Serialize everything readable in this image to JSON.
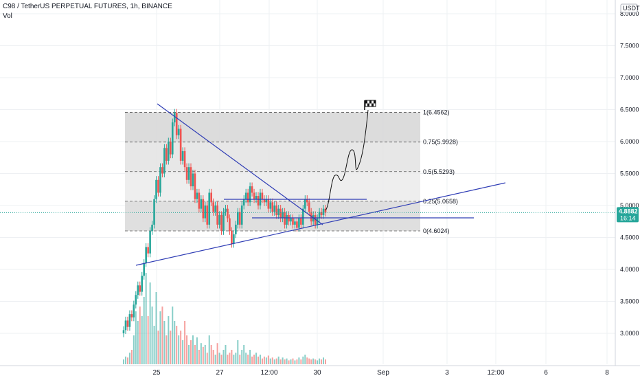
{
  "header": {
    "symbol_line": "C98 / TetherUS PERPETUAL FUTURES, 1h, BINANCE",
    "volume_label": "Vol"
  },
  "price_axis": {
    "unit_badge": "USDT",
    "ticks": [
      "8.0000",
      "7.5000",
      "7.0000",
      "6.5000",
      "6.0000",
      "5.5000",
      "5.0000",
      "4.5000",
      "4.0000",
      "3.5000",
      "3.0000"
    ]
  },
  "last_price": {
    "value": "4.8882",
    "countdown": "16:14",
    "color": "#26a69a"
  },
  "time_axis": {
    "ticks": [
      "25",
      "27",
      "12:00",
      "30",
      "Sep",
      "3",
      "12:00",
      "6",
      "8"
    ]
  },
  "colors": {
    "up": "#26a69a",
    "down": "#ef5350",
    "lines": "#2f3db5",
    "fib_band": "#d9d9d9"
  },
  "chart_data": {
    "type": "candlestick",
    "price_scale": {
      "min": 2.6,
      "max": 8.1
    },
    "fibonacci": [
      {
        "label": "1(6.4562)",
        "price": 6.4562
      },
      {
        "label": "0.75(5.9928)",
        "price": 5.9928
      },
      {
        "label": "0.5(5.5293)",
        "price": 5.5293
      },
      {
        "label": "0.25(5.0658)",
        "price": 5.0658
      },
      {
        "label": "0(4.6024)",
        "price": 4.6024
      }
    ],
    "price_path": [
      [
        3.05,
        3.2,
        3.1,
        3.3,
        3.25,
        3.45,
        3.6,
        3.75,
        3.65,
        3.9,
        4.1,
        4.35,
        4.25,
        4.6,
        4.7,
        5.1,
        5.4,
        5.2,
        5.6,
        5.5,
        5.9,
        5.7,
        6.0,
        5.8,
        6.3,
        6.45,
        6.1,
        6.2,
        5.7,
        5.85,
        5.6,
        5.4,
        5.6,
        5.3,
        5.5,
        5.1,
        5.2,
        4.95,
        5.1,
        4.8,
        5.0,
        4.7,
        5.2,
        5.05,
        4.9,
        5.0,
        4.7,
        4.85,
        4.6,
        4.9,
        4.95,
        4.8,
        4.6,
        4.4,
        4.55,
        4.7,
        4.9,
        4.7,
        5.0,
        5.1,
        5.2,
        5.05,
        5.3,
        5.2,
        5.1,
        5.15,
        5.0,
        5.2,
        5.1,
        5.05,
        5.1,
        4.95,
        5.05,
        4.9,
        5.0,
        4.85,
        4.95,
        4.8,
        4.9,
        4.7,
        4.85,
        4.75,
        4.8,
        4.7,
        4.75,
        4.65,
        4.8,
        4.7,
        4.95,
        5.1,
        5.05,
        4.9,
        4.75,
        4.85,
        4.7,
        4.8,
        4.9,
        4.85,
        4.95,
        4.8882
      ]
    ],
    "volume": [
      0.05,
      0.08,
      0.07,
      0.12,
      0.15,
      0.3,
      0.55,
      0.45,
      0.6,
      0.5,
      0.7,
      0.95,
      0.5,
      0.85,
      0.6,
      0.4,
      0.75,
      0.35,
      0.55,
      0.6,
      0.45,
      0.3,
      0.5,
      0.35,
      0.6,
      0.45,
      0.4,
      0.3,
      0.35,
      0.25,
      0.45,
      0.3,
      0.2,
      0.25,
      0.3,
      0.2,
      0.28,
      0.15,
      0.22,
      0.18,
      0.2,
      0.12,
      0.3,
      0.2,
      0.15,
      0.1,
      0.22,
      0.12,
      0.1,
      0.15,
      0.2,
      0.1,
      0.12,
      0.15,
      0.1,
      0.12,
      0.25,
      0.1,
      0.15,
      0.2,
      0.12,
      0.1,
      0.15,
      0.08,
      0.1,
      0.12,
      0.08,
      0.1,
      0.06,
      0.08,
      0.07,
      0.09,
      0.06,
      0.07,
      0.05,
      0.06,
      0.08,
      0.05,
      0.07,
      0.05,
      0.06,
      0.04,
      0.05,
      0.06,
      0.04,
      0.05,
      0.07,
      0.05,
      0.08,
      0.1,
      0.07,
      0.06,
      0.05,
      0.06,
      0.05,
      0.04,
      0.06,
      0.05,
      0.07,
      0.05
    ]
  }
}
